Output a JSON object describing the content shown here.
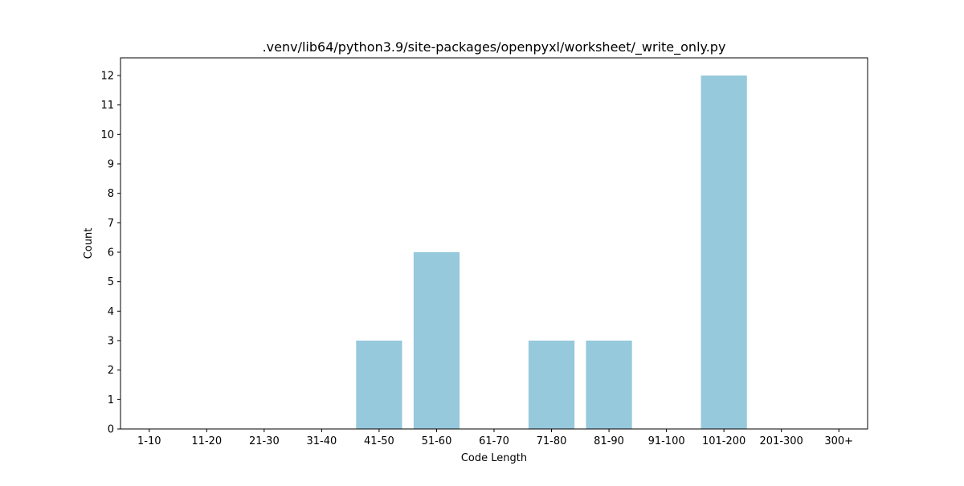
{
  "chart_data": {
    "type": "bar",
    "title": ".venv/lib64/python3.9/site-packages/openpyxl/worksheet/_write_only.py",
    "xlabel": "Code Length",
    "ylabel": "Count",
    "categories": [
      "1-10",
      "11-20",
      "21-30",
      "31-40",
      "41-50",
      "51-60",
      "61-70",
      "71-80",
      "81-90",
      "91-100",
      "101-200",
      "201-300",
      "300+"
    ],
    "values": [
      0,
      0,
      0,
      0,
      3,
      6,
      0,
      3,
      3,
      0,
      12,
      0,
      0
    ],
    "ylim": [
      0,
      12.6
    ],
    "yticks": [
      0,
      1,
      2,
      3,
      4,
      5,
      6,
      7,
      8,
      9,
      10,
      11,
      12
    ],
    "bar_color": "#96c9dc",
    "grid": false
  }
}
